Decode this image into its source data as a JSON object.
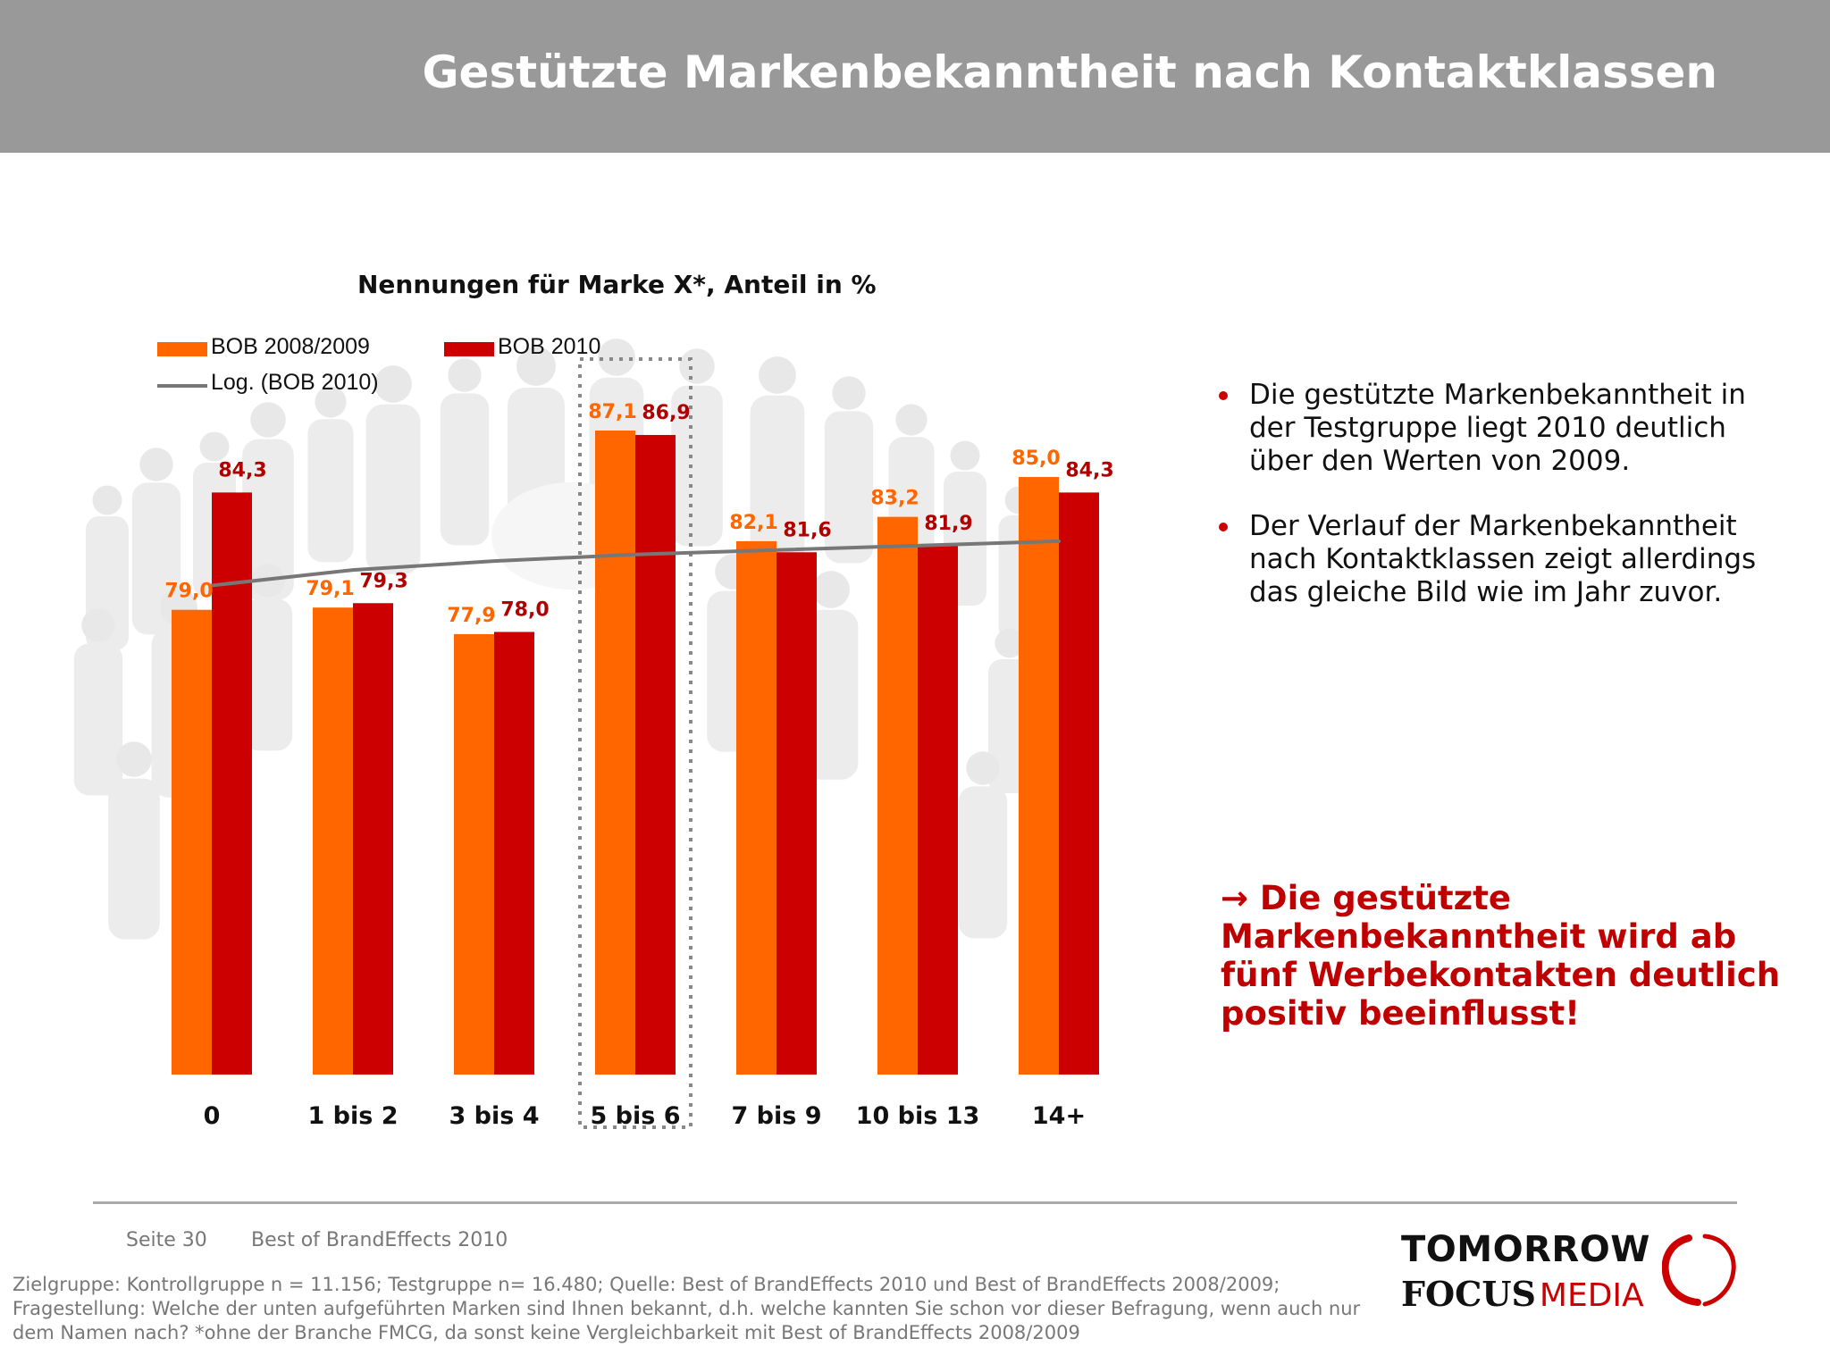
{
  "header": {
    "title": "Gestützte Markenbekanntheit nach Kontaktklassen"
  },
  "chart_data": {
    "type": "bar",
    "title": "Nennungen für Marke X*, Anteil in %",
    "categories": [
      "0",
      "1 bis 2",
      "3 bis 4",
      "5 bis 6",
      "7 bis 9",
      "10 bis 13",
      "14+"
    ],
    "series": [
      {
        "name": "BOB 2008/2009",
        "color": "#ff6600",
        "values": [
          79.0,
          79.1,
          77.9,
          87.1,
          82.1,
          83.2,
          85.0
        ],
        "labels": [
          "79,0",
          "79,1",
          "77,9",
          "87,1",
          "82,1",
          "83,2",
          "85,0"
        ]
      },
      {
        "name": "BOB 2010",
        "color": "#cc0000",
        "values": [
          84.3,
          79.3,
          78.0,
          86.9,
          81.6,
          81.9,
          84.3
        ],
        "labels": [
          "84,3",
          "79,3",
          "78,0",
          "86,9",
          "81,6",
          "81,9",
          "84,3"
        ]
      }
    ],
    "trendline": {
      "name": "Log. (BOB 2010)",
      "type": "logarithmic",
      "color": "#777777",
      "values": [
        80.1,
        80.8,
        81.2,
        81.5,
        81.7,
        81.9,
        82.1
      ]
    },
    "highlight_category": "5 bis 6",
    "ylim": [
      58,
      90
    ],
    "xlabel": "",
    "ylabel": "",
    "legend": "top-left",
    "grid": false
  },
  "bullets": [
    "Die gestützte Markenbekanntheit in der Testgruppe liegt 2010 deutlich über den Werten von 2009.",
    "Der Verlauf der Markenbekanntheit nach Kontaktklassen zeigt allerdings das gleiche Bild wie im Jahr zuvor."
  ],
  "conclusion": {
    "arrow": "→",
    "text": "Die gestützte Markenbekanntheit wird ab fünf Werbekontakten deutlich positiv beeinflusst!"
  },
  "footer": {
    "page": "Seite 30",
    "source": "Best of BrandEffects 2010",
    "footnote": "Zielgruppe: Kontrollgruppe n = 11.156; Testgruppe n= 16.480; Quelle: Best of BrandEffects 2010 und Best of BrandEffects 2008/2009; Fragestellung: Welche der unten aufgeführten Marken sind Ihnen bekannt, d.h. welche kannten Sie schon vor dieser Befragung, wenn auch nur dem Namen nach? *ohne der Branche FMCG, da sonst keine Vergleichbarkeit mit Best of BrandEffects 2008/2009"
  },
  "logo": {
    "line1": "TOMORROW",
    "line2a": "FOCUS",
    "line2b": "MEDIA",
    "colors": {
      "mark": "#cc0000"
    }
  }
}
